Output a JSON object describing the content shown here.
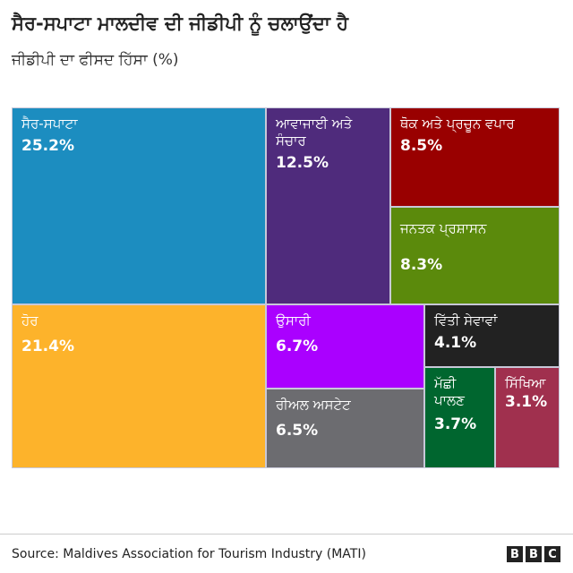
{
  "title": "ਸੈਰ-ਸਪਾਟਾ ਮਾਲਦੀਵ ਦੀ ਜੀਡੀਪੀ ਨੂੰ ਚਲਾਉਂਦਾ ਹੈ",
  "subtitle": "ਜੀਡੀਪੀ ਦਾ ਫੀਸਦ ਹਿੱਸਾ (%)",
  "chart_data": {
    "type": "treemap",
    "title": "ਸੈਰ-ਸਪਾਟਾ ਮਾਲਦੀਵ ਦੀ ਜੀਡੀਪੀ ਨੂੰ ਚਲਾਉਂਦਾ ਹੈ",
    "subtitle": "ਜੀਡੀਪੀ ਦਾ ਫੀਸਦ ਹਿੱਸਾ (%)",
    "items": [
      {
        "label": "ਸੈਰ-ਸਪਾਟਾ",
        "value": 25.2,
        "value_label": "25.2%",
        "color": "#1c8dc0"
      },
      {
        "label": "ਹੋਰ",
        "value": 21.4,
        "value_label": "21.4%",
        "color": "#fdb32b"
      },
      {
        "label": "ਆਵਾਜਾਈ ਅਤੇ ਸੰਚਾਰ",
        "value": 12.5,
        "value_label": "12.5%",
        "color": "#4f2b7c"
      },
      {
        "label": "ਥੋਕ ਅਤੇ ਪ੍ਰਚੂਨ ਵਪਾਰ",
        "value": 8.5,
        "value_label": "8.5%",
        "color": "#990000"
      },
      {
        "label": "ਜਨਤਕ ਪ੍ਰਸ਼ਾਸਨ",
        "value": 8.3,
        "value_label": "8.3%",
        "color": "#5b8a0c"
      },
      {
        "label": "ਉਸਾਰੀ",
        "value": 6.7,
        "value_label": "6.7%",
        "color": "#aa00ff"
      },
      {
        "label": "ਰੀਅਲ ਅਸਟੇਟ",
        "value": 6.5,
        "value_label": "6.5%",
        "color": "#6c6c70"
      },
      {
        "label": "ਵਿੱਤੀ ਸੇਵਾਵਾਂ",
        "value": 4.1,
        "value_label": "4.1%",
        "color": "#222222"
      },
      {
        "label": "ਮੱਛੀ ਪਾਲਣ",
        "value": 3.7,
        "value_label": "3.7%",
        "color": "#00662f"
      },
      {
        "label": "ਸਿੱਖਿਆ",
        "value": 3.1,
        "value_label": "3.1%",
        "color": "#a0304e"
      }
    ]
  },
  "source": "Source: Maldives Association for Tourism Industry (MATI)",
  "logo": [
    "B",
    "B",
    "C"
  ]
}
